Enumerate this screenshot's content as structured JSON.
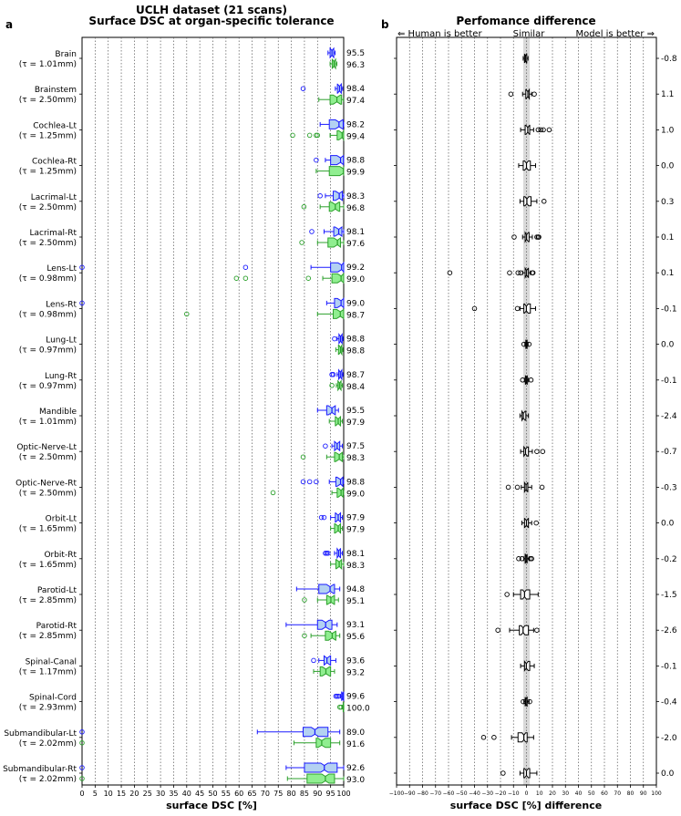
{
  "panel_a": {
    "letter": "a",
    "title_line1": "UCLH dataset (21 scans)",
    "title_line2": "Surface DSC at organ-specific tolerance",
    "xlabel": "surface DSC [%]",
    "x_ticks": [
      "0",
      "5",
      "10",
      "15",
      "20",
      "25",
      "30",
      "35",
      "40",
      "45",
      "50",
      "55",
      "60",
      "65",
      "70",
      "75",
      "80",
      "85",
      "90",
      "95",
      "100"
    ]
  },
  "panel_b": {
    "letter": "b",
    "title": "Perfomance difference",
    "header_left": "⇐ Human is better",
    "header_mid": "Similar",
    "header_right": "Model is better ⇒",
    "xlabel": "surface DSC [%] difference",
    "x_ticks": [
      "−100",
      "−90",
      "−80",
      "−70",
      "−60",
      "−50",
      "−40",
      "−30",
      "−20",
      "−10",
      "0",
      "10",
      "20",
      "30",
      "40",
      "50",
      "60",
      "70",
      "80",
      "90",
      "100"
    ]
  },
  "colors": {
    "human_fill": "#b3d1f2",
    "human_line": "#1a1aff",
    "model_fill": "#90ee90",
    "model_line": "#2ca02c",
    "diff_line": "#000000",
    "similar_band": "#d9d9d9",
    "grid": "#555555"
  },
  "chart_data": [
    {
      "type": "boxplot",
      "title": "UCLH dataset (21 scans) — Surface DSC at organ-specific tolerance",
      "xlabel": "surface DSC [%]",
      "xlim": [
        0,
        100
      ],
      "series_names": [
        "human",
        "model"
      ],
      "organs": [
        {
          "name": "Brain",
          "tol": "(τ = 1.01mm)",
          "human": {
            "median": 95.5,
            "q1": 94.8,
            "q3": 96.2,
            "wlo": 94.0,
            "whi": 96.7,
            "out": []
          },
          "model": {
            "median": 96.3,
            "q1": 95.6,
            "q3": 96.9,
            "wlo": 94.8,
            "whi": 97.4,
            "out": []
          }
        },
        {
          "name": "Brainstem",
          "tol": "(τ = 2.50mm)",
          "human": {
            "median": 98.4,
            "q1": 97.6,
            "q3": 99.1,
            "wlo": 96.8,
            "whi": 99.6,
            "out": [
              84.5
            ]
          },
          "model": {
            "median": 97.4,
            "q1": 94.8,
            "q3": 99.2,
            "wlo": 90.5,
            "whi": 99.9,
            "out": []
          }
        },
        {
          "name": "Cochlea-Lt",
          "tol": "(τ = 1.25mm)",
          "human": {
            "median": 98.2,
            "q1": 94.5,
            "q3": 99.8,
            "wlo": 91.0,
            "whi": 100,
            "out": []
          },
          "model": {
            "median": 99.4,
            "q1": 97.5,
            "q3": 100,
            "wlo": 94.8,
            "whi": 100,
            "out": [
              80.5,
              87.0,
              89.5,
              90.0
            ]
          }
        },
        {
          "name": "Cochlea-Rt",
          "tol": "(τ = 1.25mm)",
          "human": {
            "median": 98.8,
            "q1": 95.0,
            "q3": 99.9,
            "wlo": 93.0,
            "whi": 100,
            "out": [
              89.5
            ]
          },
          "model": {
            "median": 99.9,
            "q1": 94.5,
            "q3": 100,
            "wlo": 89.5,
            "whi": 100,
            "out": []
          }
        },
        {
          "name": "Lacrimal-Lt",
          "tol": "(τ = 2.50mm)",
          "human": {
            "median": 98.3,
            "q1": 96.0,
            "q3": 99.5,
            "wlo": 93.0,
            "whi": 100,
            "out": [
              91.0
            ]
          },
          "model": {
            "median": 96.8,
            "q1": 94.5,
            "q3": 98.5,
            "wlo": 91.0,
            "whi": 100,
            "out": [
              84.8
            ]
          }
        },
        {
          "name": "Lacrimal-Rt",
          "tol": "(τ = 2.50mm)",
          "human": {
            "median": 98.1,
            "q1": 96.2,
            "q3": 99.3,
            "wlo": 92.5,
            "whi": 100,
            "out": [
              87.8
            ]
          },
          "model": {
            "median": 97.6,
            "q1": 94.0,
            "q3": 98.8,
            "wlo": 90.0,
            "whi": 100,
            "out": [
              84.0
            ]
          }
        },
        {
          "name": "Lens-Lt",
          "tol": "(τ = 0.98mm)",
          "human": {
            "median": 99.2,
            "q1": 95.0,
            "q3": 100,
            "wlo": 87.5,
            "whi": 100,
            "out": [
              0,
              62.5
            ]
          },
          "model": {
            "median": 99.0,
            "q1": 95.5,
            "q3": 100,
            "wlo": 92.0,
            "whi": 100,
            "out": [
              59.0,
              62.5,
              86.5
            ]
          }
        },
        {
          "name": "Lens-Rt",
          "tol": "(τ = 0.98mm)",
          "human": {
            "median": 99.0,
            "q1": 96.5,
            "q3": 100,
            "wlo": 93.5,
            "whi": 100,
            "out": [
              0
            ]
          },
          "model": {
            "median": 98.7,
            "q1": 96.0,
            "q3": 100,
            "wlo": 90.0,
            "whi": 100,
            "out": [
              40.0
            ]
          }
        },
        {
          "name": "Lung-Lt",
          "tol": "(τ = 0.97mm)",
          "human": {
            "median": 98.8,
            "q1": 98.2,
            "q3": 99.4,
            "wlo": 97.5,
            "whi": 99.7,
            "out": [
              96.5
            ]
          },
          "model": {
            "median": 98.8,
            "q1": 98.0,
            "q3": 99.3,
            "wlo": 97.0,
            "whi": 99.7,
            "out": []
          }
        },
        {
          "name": "Lung-Rt",
          "tol": "(τ = 0.97mm)",
          "human": {
            "median": 98.7,
            "q1": 98.1,
            "q3": 99.3,
            "wlo": 97.5,
            "whi": 99.7,
            "out": [
              95.5,
              96.0
            ]
          },
          "model": {
            "median": 98.4,
            "q1": 97.8,
            "q3": 99.0,
            "wlo": 97.2,
            "whi": 99.5,
            "out": [
              95.5
            ]
          }
        },
        {
          "name": "Mandible",
          "tol": "(τ = 1.01mm)",
          "human": {
            "median": 95.5,
            "q1": 93.5,
            "q3": 96.8,
            "wlo": 90.0,
            "whi": 98.0,
            "out": []
          },
          "model": {
            "median": 97.9,
            "q1": 96.8,
            "q3": 98.8,
            "wlo": 94.5,
            "whi": 99.5,
            "out": []
          }
        },
        {
          "name": "Optic-Nerve-Lt",
          "tol": "(τ = 2.50mm)",
          "human": {
            "median": 97.5,
            "q1": 96.5,
            "q3": 98.5,
            "wlo": 95.5,
            "whi": 99.5,
            "out": [
              93.0
            ]
          },
          "model": {
            "median": 98.3,
            "q1": 96.5,
            "q3": 99.5,
            "wlo": 93.5,
            "whi": 100,
            "out": [
              84.5
            ]
          }
        },
        {
          "name": "Optic-Nerve-Rt",
          "tol": "(τ = 2.50mm)",
          "human": {
            "median": 98.8,
            "q1": 97.0,
            "q3": 99.7,
            "wlo": 94.5,
            "whi": 100,
            "out": [
              84.5,
              87.0,
              89.5
            ]
          },
          "model": {
            "median": 99.0,
            "q1": 97.5,
            "q3": 99.8,
            "wlo": 95.5,
            "whi": 100,
            "out": [
              73.0
            ]
          }
        },
        {
          "name": "Orbit-Lt",
          "tol": "(τ = 1.65mm)",
          "human": {
            "median": 97.9,
            "q1": 96.8,
            "q3": 98.8,
            "wlo": 95.0,
            "whi": 99.5,
            "out": [
              91.5,
              92.5
            ]
          },
          "model": {
            "median": 97.9,
            "q1": 96.5,
            "q3": 98.8,
            "wlo": 95.0,
            "whi": 99.5,
            "out": []
          }
        },
        {
          "name": "Orbit-Rt",
          "tol": "(τ = 1.65mm)",
          "human": {
            "median": 98.1,
            "q1": 97.5,
            "q3": 98.8,
            "wlo": 96.5,
            "whi": 99.5,
            "out": [
              93.0,
              93.5,
              94.0
            ]
          },
          "model": {
            "median": 98.3,
            "q1": 97.0,
            "q3": 99.2,
            "wlo": 95.0,
            "whi": 100,
            "out": []
          }
        },
        {
          "name": "Parotid-Lt",
          "tol": "(τ = 2.85mm)",
          "human": {
            "median": 94.8,
            "q1": 90.5,
            "q3": 96.5,
            "wlo": 82.0,
            "whi": 98.5,
            "out": []
          },
          "model": {
            "median": 95.1,
            "q1": 93.5,
            "q3": 96.5,
            "wlo": 90.0,
            "whi": 98.0,
            "out": [
              85.0
            ]
          }
        },
        {
          "name": "Parotid-Rt",
          "tol": "(τ = 2.85mm)",
          "human": {
            "median": 93.1,
            "q1": 90.0,
            "q3": 95.5,
            "wlo": 78.0,
            "whi": 97.5,
            "out": []
          },
          "model": {
            "median": 95.6,
            "q1": 93.0,
            "q3": 97.0,
            "wlo": 87.5,
            "whi": 98.5,
            "out": [
              85.0
            ]
          }
        },
        {
          "name": "Spinal-Canal",
          "tol": "(τ = 1.17mm)",
          "human": {
            "median": 93.6,
            "q1": 92.5,
            "q3": 95.0,
            "wlo": 90.5,
            "whi": 97.0,
            "out": [
              88.5
            ]
          },
          "model": {
            "median": 93.2,
            "q1": 91.0,
            "q3": 95.0,
            "wlo": 88.5,
            "whi": 96.5,
            "out": []
          }
        },
        {
          "name": "Spinal-Cord",
          "tol": "(τ = 2.93mm)",
          "human": {
            "median": 99.6,
            "q1": 99.2,
            "q3": 100,
            "wlo": 98.8,
            "whi": 100,
            "out": [
              97.0,
              97.5,
              98.0
            ]
          },
          "model": {
            "median": 100.0,
            "q1": 99.8,
            "q3": 100,
            "wlo": 99.5,
            "whi": 100,
            "out": [
              98.5,
              99.0
            ]
          }
        },
        {
          "name": "Submandibular-Lt",
          "tol": "(τ = 2.02mm)",
          "human": {
            "median": 89.0,
            "q1": 84.5,
            "q3": 94.0,
            "wlo": 67.0,
            "whi": 98.5,
            "out": [
              0
            ]
          },
          "model": {
            "median": 91.6,
            "q1": 89.5,
            "q3": 95.0,
            "wlo": 81.0,
            "whi": 98.5,
            "out": [
              0
            ]
          }
        },
        {
          "name": "Submandibular-Rt",
          "tol": "(τ = 2.02mm)",
          "human": {
            "median": 92.6,
            "q1": 85.0,
            "q3": 97.5,
            "wlo": 78.0,
            "whi": 100,
            "out": [
              0
            ]
          },
          "model": {
            "median": 93.0,
            "q1": 86.0,
            "q3": 96.5,
            "wlo": 78.5,
            "whi": 100,
            "out": [
              0
            ]
          }
        }
      ]
    },
    {
      "type": "boxplot",
      "title": "Perfomance difference",
      "xlabel": "surface DSC [%] difference",
      "xlim": [
        -100,
        100
      ],
      "similar_band": [
        -2.5,
        2.5
      ],
      "labels": [
        "-0.8",
        "1.1",
        "1.0",
        "0.0",
        "0.3",
        "0.1",
        "0.1",
        "-0.1",
        "0.0",
        "-0.1",
        "-2.4",
        "-0.7",
        "-0.3",
        "0.0",
        "-0.2",
        "-1.5",
        "-2.6",
        "-0.1",
        "-0.4",
        "-2.0",
        "0.0"
      ],
      "diffs": [
        {
          "median": -0.8,
          "q1": -1.5,
          "q3": 0.2,
          "wlo": -2.5,
          "whi": 1.2,
          "out": []
        },
        {
          "median": 1.1,
          "q1": -0.5,
          "q3": 2.2,
          "wlo": -3.0,
          "whi": 4.0,
          "out": [
            -12.0,
            6.0
          ]
        },
        {
          "median": 1.0,
          "q1": -1.0,
          "q3": 2.5,
          "wlo": -4.5,
          "whi": 5.5,
          "out": [
            9.0,
            11.0,
            13.0,
            17.5
          ]
        },
        {
          "median": 0.0,
          "q1": -2.5,
          "q3": 3.0,
          "wlo": -6.0,
          "whi": 7.0,
          "out": []
        },
        {
          "median": 0.3,
          "q1": -2.0,
          "q3": 3.5,
          "wlo": -5.0,
          "whi": 8.0,
          "out": [
            13.5
          ]
        },
        {
          "median": 0.1,
          "q1": -1.0,
          "q3": 2.0,
          "wlo": -3.0,
          "whi": 4.5,
          "out": [
            -9.5,
            8.0,
            9.0,
            9.5
          ]
        },
        {
          "median": 0.1,
          "q1": -1.0,
          "q3": 1.5,
          "wlo": -3.0,
          "whi": 3.0,
          "out": [
            -59.0,
            -13.0,
            -6.5,
            -4.5,
            4.5,
            5.0
          ]
        },
        {
          "median": -0.1,
          "q1": -2.0,
          "q3": 3.0,
          "wlo": -5.0,
          "whi": 7.0,
          "out": [
            -40.0,
            -7.0
          ]
        },
        {
          "median": 0.0,
          "q1": -0.5,
          "q3": 0.5,
          "wlo": -1.2,
          "whi": 1.2,
          "out": [
            -2.0,
            2.0
          ]
        },
        {
          "median": -0.1,
          "q1": -0.8,
          "q3": 0.6,
          "wlo": -1.5,
          "whi": 1.5,
          "out": [
            -3.0,
            3.5
          ]
        },
        {
          "median": -2.4,
          "q1": -3.5,
          "q3": -0.5,
          "wlo": -5.0,
          "whi": 1.5,
          "out": []
        },
        {
          "median": -0.7,
          "q1": -2.0,
          "q3": 1.5,
          "wlo": -4.5,
          "whi": 4.5,
          "out": [
            8.0,
            12.5
          ]
        },
        {
          "median": -0.3,
          "q1": -1.5,
          "q3": 1.0,
          "wlo": -4.0,
          "whi": 4.0,
          "out": [
            -14.0,
            -7.0,
            12.0
          ]
        },
        {
          "median": 0.0,
          "q1": -1.5,
          "q3": 1.5,
          "wlo": -3.5,
          "whi": 4.0,
          "out": [
            7.5
          ]
        },
        {
          "median": -0.2,
          "q1": -1.0,
          "q3": 0.5,
          "wlo": -2.0,
          "whi": 2.0,
          "out": [
            -6.0,
            -3.5,
            3.0,
            4.0
          ]
        },
        {
          "median": -1.5,
          "q1": -4.5,
          "q3": 2.5,
          "wlo": -10.0,
          "whi": 9.0,
          "out": [
            -15.0
          ]
        },
        {
          "median": -2.6,
          "q1": -5.5,
          "q3": 1.5,
          "wlo": -13.0,
          "whi": 5.5,
          "out": [
            -22.0,
            8.0
          ]
        },
        {
          "median": -0.1,
          "q1": -1.5,
          "q3": 2.5,
          "wlo": -4.5,
          "whi": 6.0,
          "out": []
        },
        {
          "median": -0.4,
          "q1": -1.0,
          "q3": 0.5,
          "wlo": -2.0,
          "whi": 2.0,
          "out": [
            -2.5,
            2.5
          ]
        },
        {
          "median": -2.0,
          "q1": -6.5,
          "q3": 0.5,
          "wlo": -11.5,
          "whi": 5.5,
          "out": [
            -33.0,
            -25.0
          ]
        },
        {
          "median": 0.0,
          "q1": -2.0,
          "q3": 2.5,
          "wlo": -5.0,
          "whi": 8.0,
          "out": [
            -18.0
          ]
        }
      ]
    }
  ]
}
